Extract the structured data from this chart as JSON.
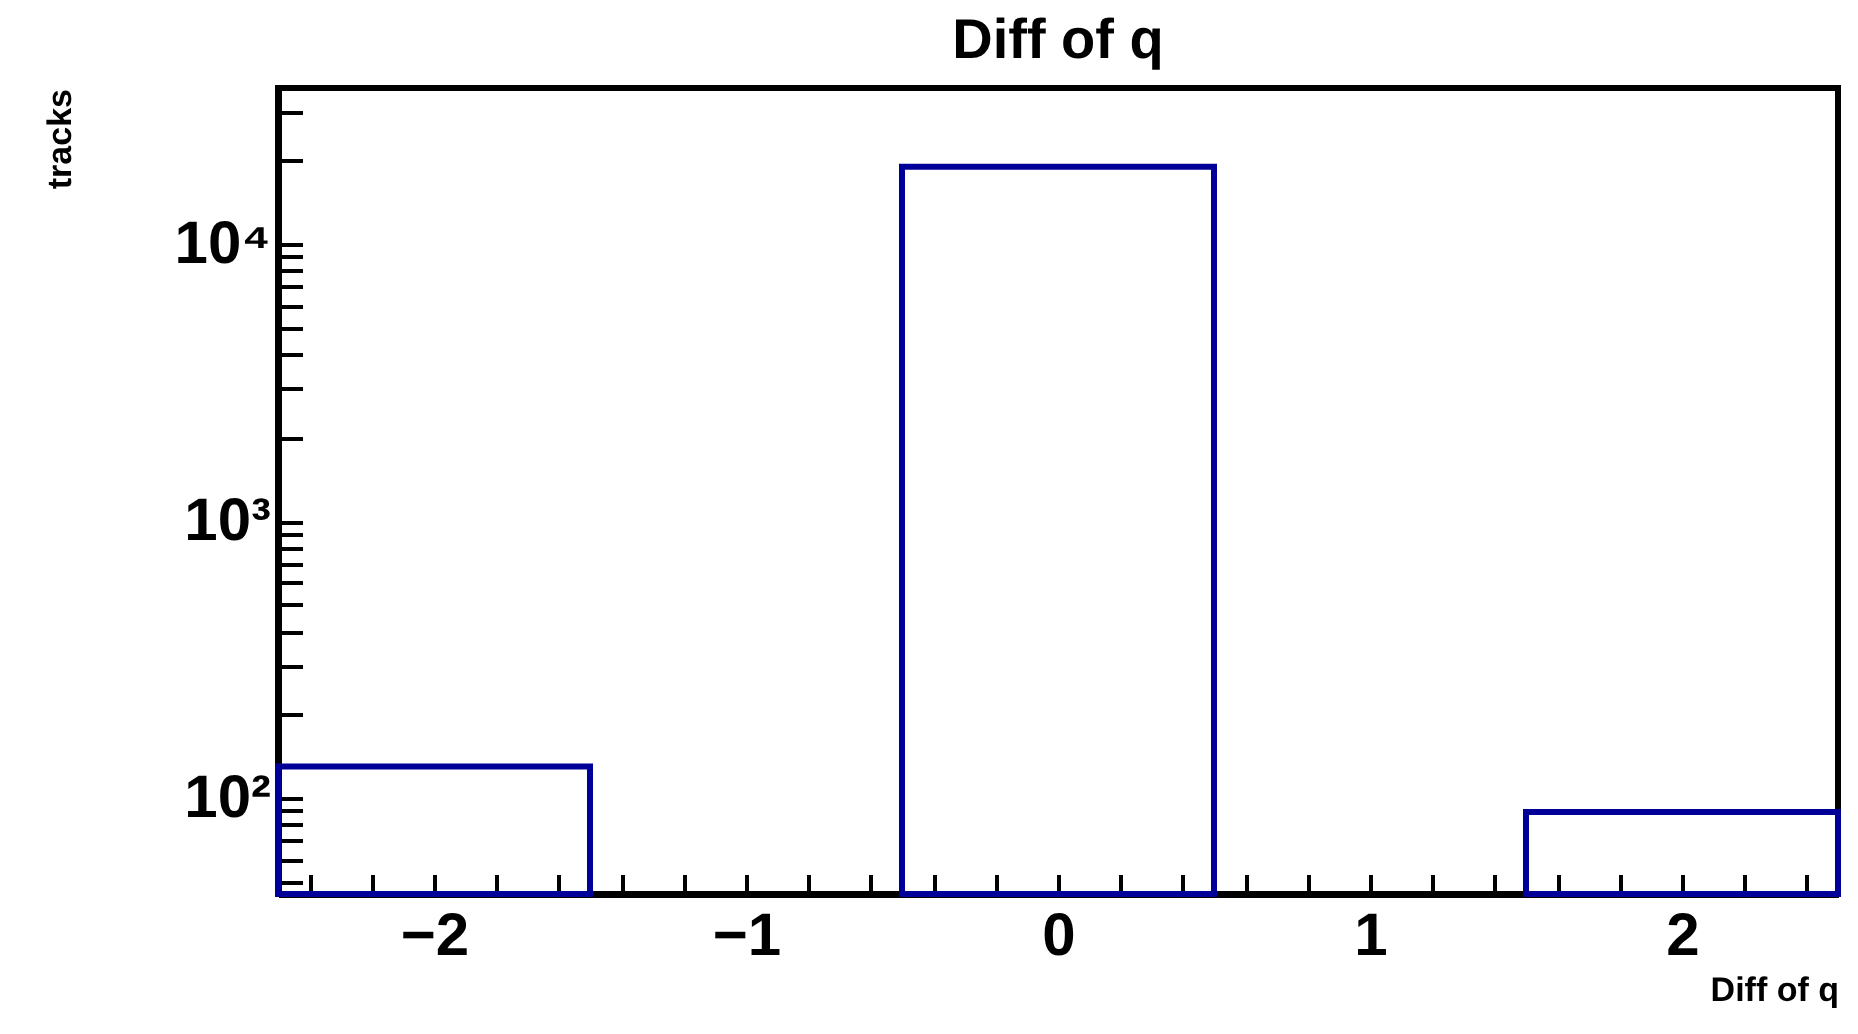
{
  "chart_data": {
    "type": "histogram",
    "title": "Diff of q",
    "xlabel": "Diff of q",
    "ylabel": "tracks",
    "bins": [
      -2.5,
      -1.5,
      -0.5,
      0.5,
      1.5,
      2.5
    ],
    "values": [
      130,
      null,
      19000,
      null,
      89
    ],
    "color": "#000099",
    "log": "y",
    "grid": false,
    "xlim": [
      -2.5,
      2.5
    ],
    "xticks": [
      {
        "value": -2.4,
        "label": null
      },
      {
        "value": -2.2,
        "label": null
      },
      -2,
      {
        "value": -1.8,
        "label": null
      },
      {
        "value": -1.6,
        "label": null
      },
      {
        "value": -1.4,
        "label": null
      },
      {
        "value": -1.2,
        "label": null
      },
      -1,
      {
        "value": -0.8,
        "label": null
      },
      {
        "value": -0.6,
        "label": null
      },
      {
        "value": -0.4,
        "label": null
      },
      {
        "value": -0.2,
        "label": null
      },
      0,
      {
        "value": 0.2,
        "label": null
      },
      {
        "value": 0.4,
        "label": null
      },
      {
        "value": 0.6,
        "label": null
      },
      {
        "value": 0.8,
        "label": null
      },
      1,
      {
        "value": 1.2,
        "label": null
      },
      {
        "value": 1.4,
        "label": null
      },
      {
        "value": 1.6,
        "label": null
      },
      {
        "value": 1.8,
        "label": null
      },
      2,
      {
        "value": 2.2,
        "label": null
      },
      {
        "value": 2.4,
        "label": null
      }
    ],
    "ylim": [
      45,
      36600
    ],
    "yticks": [
      {
        "value": 50,
        "label": null
      },
      {
        "value": 60,
        "label": null
      },
      {
        "value": 70,
        "label": null
      },
      {
        "value": 80,
        "label": null
      },
      {
        "value": 90,
        "label": null
      },
      {
        "value": 100,
        "label": "10²"
      },
      {
        "value": 200,
        "label": null
      },
      {
        "value": 300,
        "label": null
      },
      {
        "value": 400,
        "label": null
      },
      {
        "value": 500,
        "label": null
      },
      {
        "value": 600,
        "label": null
      },
      {
        "value": 700,
        "label": null
      },
      {
        "value": 800,
        "label": null
      },
      {
        "value": 900,
        "label": null
      },
      {
        "value": 1000,
        "label": "10³"
      },
      {
        "value": 2000,
        "label": null
      },
      {
        "value": 3000,
        "label": null
      },
      {
        "value": 4000,
        "label": null
      },
      {
        "value": 5000,
        "label": null
      },
      {
        "value": 6000,
        "label": null
      },
      {
        "value": 7000,
        "label": null
      },
      {
        "value": 8000,
        "label": null
      },
      {
        "value": 9000,
        "label": null
      },
      {
        "value": 10000,
        "label": "10⁴"
      },
      {
        "value": 20000,
        "label": null
      },
      {
        "value": 30000,
        "label": null
      }
    ]
  }
}
